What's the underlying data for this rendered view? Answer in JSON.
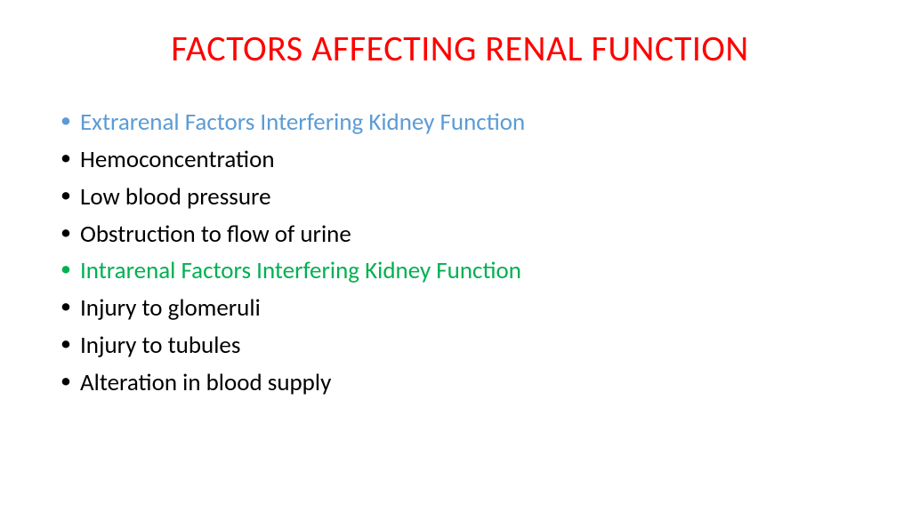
{
  "title": {
    "text": "FACTORS AFFECTING RENAL FUNCTION",
    "color": "#ff0000",
    "fontsize": 40
  },
  "bullets": [
    {
      "text": "Extrarenal Factors Interfering Kidney Function",
      "text_color": "#5b9bd5",
      "bullet_color": "#5b9bd5",
      "indent_extra": 0
    },
    {
      "text": "Hemoconcentration",
      "text_color": "#000000",
      "bullet_color": "#000000",
      "indent_extra": 0
    },
    {
      "text": "Low blood pressure",
      "text_color": "#000000",
      "bullet_color": "#000000",
      "indent_extra": 0
    },
    {
      "text": "Obstruction to flow of urine",
      "text_color": "#000000",
      "bullet_color": "#000000",
      "indent_extra": 0
    },
    {
      "text": "Intrarenal Factors Interfering Kidney Function",
      "text_color": "#00b050",
      "bullet_color": "#00b050",
      "indent_extra": 0
    },
    {
      "text": " Injury to glomeruli",
      "text_color": "#000000",
      "bullet_color": "#000000",
      "indent_extra": 0
    },
    {
      "text": " Injury to tubules",
      "text_color": "#000000",
      "bullet_color": "#000000",
      "indent_extra": 0
    },
    {
      "text": " Alteration in blood supply",
      "text_color": "#000000",
      "bullet_color": "#000000",
      "indent_extra": 0
    }
  ],
  "styling": {
    "background_color": "#ffffff",
    "body_fontsize": 27,
    "line_height": 1.55,
    "font_family": "Calibri"
  }
}
